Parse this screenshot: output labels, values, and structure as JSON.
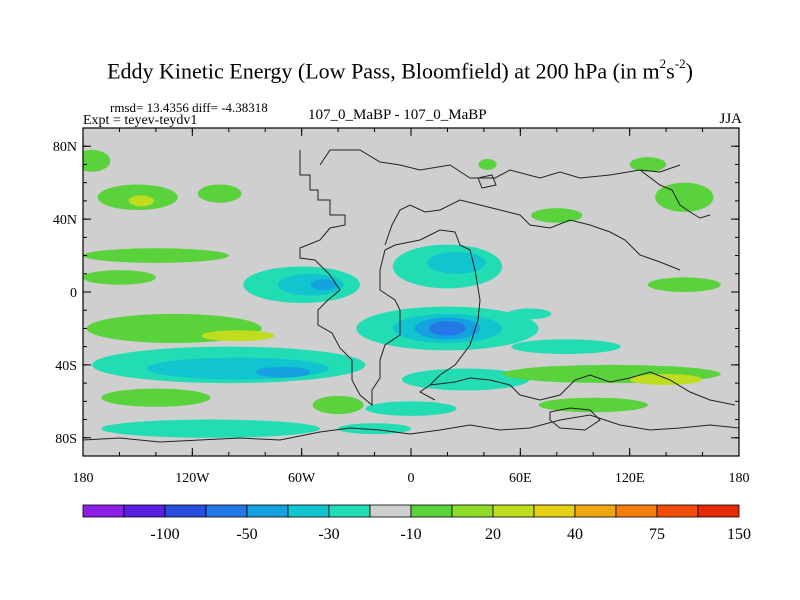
{
  "title": {
    "main": "Eddy Kinetic Energy (Low Pass, Bloomfield) at 200 hPa (in m",
    "sup1": "2",
    "mid": "s",
    "sup2": "-2",
    "end": ")"
  },
  "stats": "rmsd= 13.4356  diff= -4.38318",
  "experiment": "Expt = teyev-teydv1",
  "comparison": "107_0_MaBP - 107_0_MaBP",
  "season": "JJA",
  "lat_ticks": [
    {
      "lat": 80,
      "label": "80N"
    },
    {
      "lat": 40,
      "label": "40N"
    },
    {
      "lat": 0,
      "label": "0"
    },
    {
      "lat": -40,
      "label": "40S"
    },
    {
      "lat": -80,
      "label": "80S"
    }
  ],
  "lon_ticks": [
    {
      "lon": -180,
      "label": "180"
    },
    {
      "lon": -120,
      "label": "120W"
    },
    {
      "lon": -60,
      "label": "60W"
    },
    {
      "lon": 0,
      "label": "0"
    },
    {
      "lon": 60,
      "label": "60E"
    },
    {
      "lon": 120,
      "label": "120E"
    },
    {
      "lon": 180,
      "label": "180"
    }
  ],
  "colorbar": {
    "colors": [
      "#8b1fe6",
      "#5a1fe0",
      "#2c4ee0",
      "#2178e6",
      "#15a0e0",
      "#10c4d0",
      "#22dcb4",
      "#cfcfcf",
      "#5ad23c",
      "#8edc28",
      "#bfdc1e",
      "#e6cf14",
      "#f0a60f",
      "#f57d0c",
      "#f24e0a",
      "#e62a05"
    ],
    "labels": [
      "-100",
      "-50",
      "-30",
      "-10",
      "20",
      "40",
      "75",
      "150"
    ]
  },
  "legend_colors": {
    "neutral": "#cfcfcf",
    "light_green": "#5ad23c",
    "yellow_green": "#bfdc1e",
    "light_cyan": "#22dcb4",
    "cyan": "#10c4d0",
    "sky_blue": "#15a0e0",
    "blue": "#2178e6",
    "deep_blue": "#2c4ee0"
  },
  "features": [
    {
      "name": "green-band-nw",
      "lon": -150,
      "lat": 52,
      "rx": 22,
      "ry": 7,
      "color": "light_green"
    },
    {
      "name": "green-patch-nw",
      "lon": -148,
      "lat": 50,
      "rx": 7,
      "ry": 3,
      "color": "yellow_green"
    },
    {
      "name": "green-band-nw2",
      "lon": -175,
      "lat": 72,
      "rx": 10,
      "ry": 6,
      "color": "light_green"
    },
    {
      "name": "green-patch-npac",
      "lon": -105,
      "lat": 54,
      "rx": 12,
      "ry": 5,
      "color": "light_green"
    },
    {
      "name": "green-patch-natl",
      "lon": 42,
      "lat": 70,
      "rx": 5,
      "ry": 3,
      "color": "light_green"
    },
    {
      "name": "green-patch-nasia",
      "lon": 80,
      "lat": 42,
      "rx": 14,
      "ry": 4,
      "color": "light_green"
    },
    {
      "name": "green-patch-nepac",
      "lon": 150,
      "lat": 52,
      "rx": 16,
      "ry": 8,
      "color": "light_green"
    },
    {
      "name": "green-patch-ne",
      "lon": 130,
      "lat": 70,
      "rx": 10,
      "ry": 4,
      "color": "light_green"
    },
    {
      "name": "green-band-west-tropics",
      "lon": -140,
      "lat": 20,
      "rx": 40,
      "ry": 4,
      "color": "light_green"
    },
    {
      "name": "green-band-ind",
      "lon": -160,
      "lat": 8,
      "rx": 20,
      "ry": 4,
      "color": "light_green"
    },
    {
      "name": "green-band-eq-east",
      "lon": 150,
      "lat": 4,
      "rx": 20,
      "ry": 4,
      "color": "light_green"
    },
    {
      "name": "green-band-sh-west",
      "lon": -130,
      "lat": -20,
      "rx": 48,
      "ry": 8,
      "color": "light_green"
    },
    {
      "name": "yellow-core-sh",
      "lon": -95,
      "lat": -24,
      "rx": 20,
      "ry": 3,
      "color": "yellow_green"
    },
    {
      "name": "cyan-band-sh",
      "lon": -100,
      "lat": -40,
      "rx": 75,
      "ry": 10,
      "color": "light_cyan"
    },
    {
      "name": "cyan-band-sh-in",
      "lon": -95,
      "lat": -42,
      "rx": 50,
      "ry": 6,
      "color": "cyan"
    },
    {
      "name": "sky-core-sh",
      "lon": -70,
      "lat": -44,
      "rx": 15,
      "ry": 3,
      "color": "sky_blue"
    },
    {
      "name": "green-band-sh-south",
      "lon": -140,
      "lat": -58,
      "rx": 30,
      "ry": 5,
      "color": "light_green"
    },
    {
      "name": "green-band-sh-south2",
      "lon": -40,
      "lat": -62,
      "rx": 14,
      "ry": 5,
      "color": "light_green"
    },
    {
      "name": "cyan-arc-eq",
      "lon": 20,
      "lat": 14,
      "rx": 30,
      "ry": 12,
      "color": "light_cyan"
    },
    {
      "name": "cyan-arc-eq-in",
      "lon": 25,
      "lat": 16,
      "rx": 16,
      "ry": 6,
      "color": "cyan"
    },
    {
      "name": "cyan-west-eq",
      "lon": -60,
      "lat": 4,
      "rx": 32,
      "ry": 10,
      "color": "light_cyan"
    },
    {
      "name": "cyan-west-eq-in",
      "lon": -55,
      "lat": 4,
      "rx": 18,
      "ry": 6,
      "color": "cyan"
    },
    {
      "name": "sky-west-eq",
      "lon": -48,
      "lat": 4,
      "rx": 7,
      "ry": 3,
      "color": "sky_blue"
    },
    {
      "name": "cyan-band-eq-e",
      "lon": 65,
      "lat": -12,
      "rx": 12,
      "ry": 3,
      "color": "light_cyan"
    },
    {
      "name": "blue-core-sh-africa",
      "lon": 20,
      "lat": -20,
      "rx": 50,
      "ry": 12,
      "color": "light_cyan"
    },
    {
      "name": "blue-core-sh-africa-2",
      "lon": 20,
      "lat": -20,
      "rx": 30,
      "ry": 8,
      "color": "cyan"
    },
    {
      "name": "blue-core-sh-africa-3",
      "lon": 20,
      "lat": -20,
      "rx": 18,
      "ry": 6,
      "color": "sky_blue"
    },
    {
      "name": "blue-core-sh-africa-4",
      "lon": 20,
      "lat": -20,
      "rx": 10,
      "ry": 4,
      "color": "blue"
    },
    {
      "name": "cyan-south-africa",
      "lon": 30,
      "lat": -48,
      "rx": 35,
      "ry": 6,
      "color": "light_cyan"
    },
    {
      "name": "green-band-sindian",
      "lon": 110,
      "lat": -45,
      "rx": 60,
      "ry": 5,
      "color": "light_green"
    },
    {
      "name": "yellow-core-sindian",
      "lon": 140,
      "lat": -48,
      "rx": 20,
      "ry": 3,
      "color": "yellow_green"
    },
    {
      "name": "cyan-band-sindian",
      "lon": 85,
      "lat": -30,
      "rx": 30,
      "ry": 4,
      "color": "light_cyan"
    },
    {
      "name": "cyan-band-south-sh",
      "lon": 0,
      "lat": -64,
      "rx": 25,
      "ry": 4,
      "color": "light_cyan"
    },
    {
      "name": "green-band-far-south",
      "lon": 100,
      "lat": -62,
      "rx": 30,
      "ry": 4,
      "color": "light_green"
    },
    {
      "name": "cyan-band-80s",
      "lon": -110,
      "lat": -75,
      "rx": 60,
      "ry": 5,
      "color": "light_cyan"
    },
    {
      "name": "cyan-band-80s-e",
      "lon": -20,
      "lat": -75,
      "rx": 20,
      "ry": 3,
      "color": "light_cyan"
    }
  ]
}
